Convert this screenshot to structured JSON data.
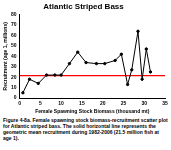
{
  "chart_data": {
    "type": "line",
    "title": "Atlantic Striped Bass",
    "x_label": "Female Spawning Stock Biomass (thousand mt)",
    "y_label": "Recruitment (age 1, millions)",
    "caption": "Figure 4-8a. Female spawning stock biomass-recruitment scatter plot for Atlantic striped bass. The solid horizontal line represents the geometric mean recruitment during 1982-2006 (21.5 million fish at age 1).",
    "x": [
      0.8,
      2.4,
      4.5,
      6.5,
      8.5,
      10,
      12,
      14,
      16,
      18.5,
      20.5,
      23,
      24.5,
      26,
      27,
      28.5,
      29.5,
      30.5,
      31.5
    ],
    "series": [
      {
        "color": "#000000",
        "marker": "circle",
        "values": [
          5,
          18,
          14,
          22,
          22,
          22,
          33,
          44,
          34,
          33,
          33,
          36,
          42,
          13,
          27,
          64,
          18,
          47,
          25
        ]
      }
    ],
    "reference_lines": [
      {
        "value": 21.5,
        "color": "#ff0000"
      }
    ],
    "xlim": [
      0,
      35
    ],
    "xticks": [
      0,
      5,
      10,
      15,
      20,
      25,
      30,
      35
    ],
    "ylim": [
      0,
      80
    ],
    "yticks": [
      0,
      10,
      20,
      30,
      40,
      50,
      60,
      70,
      80
    ],
    "grid": false
  }
}
